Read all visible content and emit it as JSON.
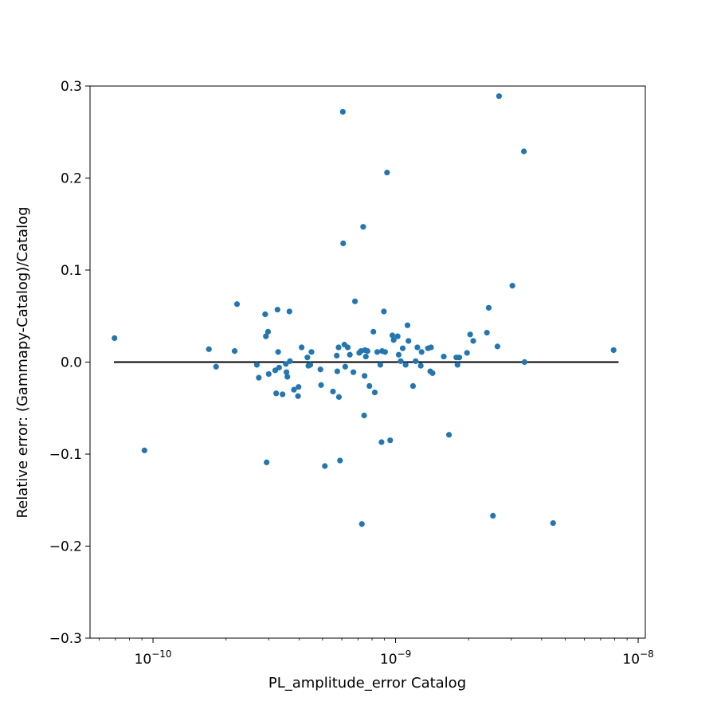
{
  "chart_data": {
    "type": "scatter",
    "xlabel": "PL_amplitude_error Catalog",
    "ylabel": "Relative error: (Gammapy-Catalog)/Catalog",
    "xscale": "log",
    "xlim": [
      5.5e-11,
      1.07e-08
    ],
    "ylim": [
      -0.3,
      0.3
    ],
    "x_major_ticks": [
      {
        "value": 1e-10,
        "label_base": "10",
        "label_exp": "−10"
      },
      {
        "value": 1e-09,
        "label_base": "10",
        "label_exp": "−9"
      },
      {
        "value": 1e-08,
        "label_base": "10",
        "label_exp": "−8"
      }
    ],
    "y_ticks": [
      {
        "value": 0.3,
        "label": "0.3"
      },
      {
        "value": 0.2,
        "label": "0.2"
      },
      {
        "value": 0.1,
        "label": "0.1"
      },
      {
        "value": 0.0,
        "label": "0.0"
      },
      {
        "value": -0.1,
        "label": "−0.1"
      },
      {
        "value": -0.2,
        "label": "−0.2"
      },
      {
        "value": -0.3,
        "label": "−0.3"
      }
    ],
    "reference_line": {
      "y": 0.0,
      "x_range": [
        6.9e-11,
        8.3e-09
      ],
      "color": "#000000"
    },
    "marker_color": "#1f77b4",
    "points": [
      [
        6.94e-11,
        0.026
      ],
      [
        9.22e-11,
        -0.096
      ],
      [
        1.7e-10,
        0.014
      ],
      [
        1.82e-10,
        -0.005
      ],
      [
        2.17e-10,
        0.012
      ],
      [
        2.22e-10,
        0.063
      ],
      [
        2.68e-10,
        -0.003
      ],
      [
        2.73e-10,
        -0.017
      ],
      [
        2.9e-10,
        0.052
      ],
      [
        2.92e-10,
        0.028
      ],
      [
        2.94e-10,
        -0.109
      ],
      [
        2.98e-10,
        0.033
      ],
      [
        3e-10,
        -0.013
      ],
      [
        3.19e-10,
        -0.009
      ],
      [
        3.22e-10,
        -0.034
      ],
      [
        3.26e-10,
        0.057
      ],
      [
        3.28e-10,
        0.011
      ],
      [
        3.31e-10,
        -0.006
      ],
      [
        3.42e-10,
        -0.035
      ],
      [
        3.53e-10,
        -0.002
      ],
      [
        3.55e-10,
        -0.011
      ],
      [
        3.58e-10,
        -0.016
      ],
      [
        3.65e-10,
        0.055
      ],
      [
        3.67e-10,
        0.001
      ],
      [
        3.81e-10,
        -0.03
      ],
      [
        3.96e-10,
        -0.037
      ],
      [
        3.98e-10,
        -0.027
      ],
      [
        4.1e-10,
        0.016
      ],
      [
        4.33e-10,
        0.005
      ],
      [
        4.37e-10,
        -0.004
      ],
      [
        4.45e-10,
        -0.003
      ],
      [
        4.5e-10,
        0.011
      ],
      [
        4.9e-10,
        -0.008
      ],
      [
        4.93e-10,
        -0.025
      ],
      [
        5.11e-10,
        -0.113
      ],
      [
        5.52e-10,
        -0.032
      ],
      [
        5.72e-10,
        0.007
      ],
      [
        5.75e-10,
        -0.01
      ],
      [
        5.82e-10,
        0.016
      ],
      [
        5.84e-10,
        -0.038
      ],
      [
        5.9e-10,
        -0.107
      ],
      [
        6.06e-10,
        0.272
      ],
      [
        6.08e-10,
        0.129
      ],
      [
        6.15e-10,
        0.019
      ],
      [
        6.2e-10,
        -0.005
      ],
      [
        6.35e-10,
        0.016
      ],
      [
        6.48e-10,
        0.008
      ],
      [
        6.7e-10,
        -0.011
      ],
      [
        6.8e-10,
        0.066
      ],
      [
        7.08e-10,
        0.01
      ],
      [
        7.2e-10,
        0.012
      ],
      [
        7.26e-10,
        -0.176
      ],
      [
        7.35e-10,
        0.147
      ],
      [
        7.42e-10,
        -0.058
      ],
      [
        7.45e-10,
        -0.015
      ],
      [
        7.48e-10,
        0.013
      ],
      [
        7.54e-10,
        0.006
      ],
      [
        7.66e-10,
        0.012
      ],
      [
        7.8e-10,
        -0.026
      ],
      [
        8.1e-10,
        0.033
      ],
      [
        8.21e-10,
        -0.033
      ],
      [
        8.4e-10,
        0.011
      ],
      [
        8.65e-10,
        -0.003
      ],
      [
        8.75e-10,
        -0.087
      ],
      [
        8.8e-10,
        0.012
      ],
      [
        8.95e-10,
        0.055
      ],
      [
        9.05e-10,
        0.011
      ],
      [
        9.22e-10,
        0.206
      ],
      [
        9.5e-10,
        -0.085
      ],
      [
        9.7e-10,
        0.029
      ],
      [
        9.82e-10,
        0.024
      ],
      [
        1.02e-09,
        0.028
      ],
      [
        1.03e-09,
        0.008
      ],
      [
        1.05e-09,
        0.001
      ],
      [
        1.07e-09,
        0.015
      ],
      [
        1.1e-09,
        -0.003
      ],
      [
        1.12e-09,
        0.04
      ],
      [
        1.13e-09,
        0.023
      ],
      [
        1.18e-09,
        -0.026
      ],
      [
        1.21e-09,
        0.001
      ],
      [
        1.23e-09,
        0.016
      ],
      [
        1.27e-09,
        -0.004
      ],
      [
        1.28e-09,
        0.011
      ],
      [
        1.36e-09,
        0.015
      ],
      [
        1.39e-09,
        -0.01
      ],
      [
        1.4e-09,
        0.016
      ],
      [
        1.42e-09,
        -0.012
      ],
      [
        1.58e-09,
        0.006
      ],
      [
        1.66e-09,
        -0.079
      ],
      [
        1.78e-09,
        0.005
      ],
      [
        1.8e-09,
        -0.003
      ],
      [
        1.83e-09,
        0.005
      ],
      [
        1.97e-09,
        0.01
      ],
      [
        2.03e-09,
        0.03
      ],
      [
        2.09e-09,
        0.023
      ],
      [
        2.38e-09,
        0.032
      ],
      [
        2.42e-09,
        0.059
      ],
      [
        2.52e-09,
        -0.167
      ],
      [
        2.63e-09,
        0.017
      ],
      [
        2.67e-09,
        0.289
      ],
      [
        3.03e-09,
        0.083
      ],
      [
        3.38e-09,
        0.229
      ],
      [
        3.4e-09,
        0.0
      ],
      [
        4.46e-09,
        -0.175
      ],
      [
        7.92e-09,
        0.013
      ]
    ]
  }
}
